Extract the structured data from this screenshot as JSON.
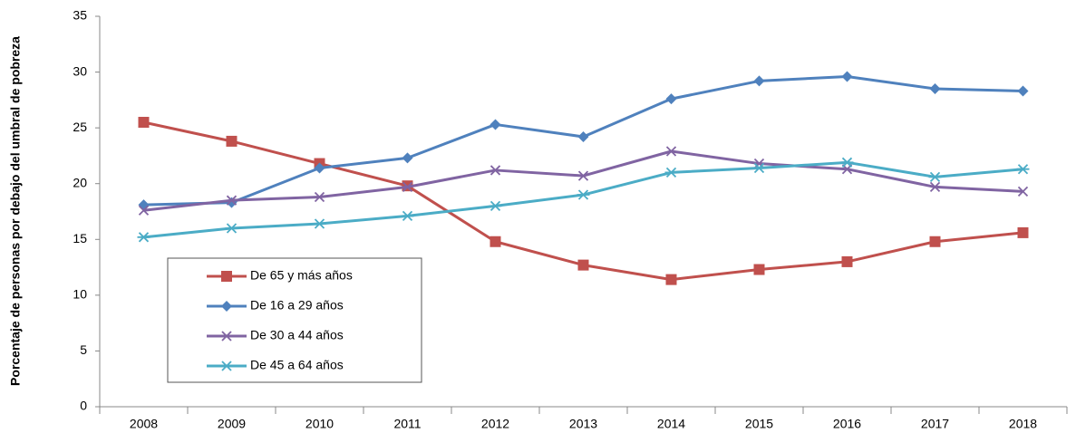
{
  "chart_data": {
    "type": "line",
    "ylabel": "Porcentaje de personas por debajo del umbral de pobreza",
    "categories": [
      "2008",
      "2009",
      "2010",
      "2011",
      "2012",
      "2013",
      "2014",
      "2015",
      "2016",
      "2017",
      "2018"
    ],
    "series": [
      {
        "name": "De 65 y más años",
        "color": "#c0504d",
        "marker": "square",
        "values": [
          25.5,
          23.8,
          21.8,
          19.8,
          14.8,
          12.7,
          11.4,
          12.3,
          13.0,
          14.8,
          15.6
        ]
      },
      {
        "name": "De 16 a 29 años",
        "color": "#4f81bd",
        "marker": "diamond",
        "values": [
          18.1,
          18.3,
          21.4,
          22.3,
          25.3,
          24.2,
          27.6,
          29.2,
          29.6,
          28.5,
          28.3
        ]
      },
      {
        "name": "De 30 a 44 años",
        "color": "#8064a2",
        "marker": "x",
        "values": [
          17.6,
          18.5,
          18.8,
          19.7,
          21.2,
          20.7,
          22.9,
          21.8,
          21.3,
          19.7,
          19.3
        ]
      },
      {
        "name": "De 45 a 64 años",
        "color": "#4bacc6",
        "marker": "asterisk",
        "values": [
          15.2,
          16.0,
          16.4,
          17.1,
          18.0,
          19.0,
          21.0,
          21.4,
          21.9,
          20.6,
          21.3
        ]
      }
    ],
    "ylim": [
      0,
      35
    ],
    "yticks": [
      0,
      5,
      10,
      15,
      20,
      25,
      30,
      35
    ],
    "grid": false,
    "legend": "lower-left"
  }
}
